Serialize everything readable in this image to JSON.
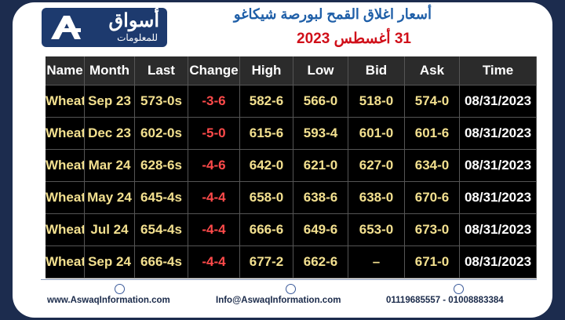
{
  "logo": {
    "name": "أسواق",
    "tagline": "للمعلومات"
  },
  "header": {
    "title": "أسعار اغلاق القمح لبورصة شيكاغو",
    "date": "31 أغسطس 2023"
  },
  "table": {
    "columns": [
      "Name",
      "Month",
      "Last",
      "Change",
      "High",
      "Low",
      "Bid",
      "Ask",
      "Time"
    ],
    "rows": [
      [
        "Wheat",
        "Sep 23",
        "573-0s",
        "-3-6",
        "582-6",
        "566-0",
        "518-0",
        "574-0",
        "08/31/2023"
      ],
      [
        "Wheat",
        "Dec 23",
        "602-0s",
        "-5-0",
        "615-6",
        "593-4",
        "601-0",
        "601-6",
        "08/31/2023"
      ],
      [
        "Wheat",
        "Mar 24",
        "628-6s",
        "-4-6",
        "642-0",
        "621-0",
        "627-0",
        "634-0",
        "08/31/2023"
      ],
      [
        "Wheat",
        "May 24",
        "645-4s",
        "-4-4",
        "658-0",
        "638-6",
        "638-0",
        "670-6",
        "08/31/2023"
      ],
      [
        "Wheat",
        "Jul 24",
        "654-4s",
        "-4-4",
        "666-6",
        "649-6",
        "653-0",
        "673-0",
        "08/31/2023"
      ],
      [
        "Wheat",
        "Sep 24",
        "666-4s",
        "-4-4",
        "677-2",
        "662-6",
        "–",
        "671-0",
        "08/31/2023"
      ]
    ]
  },
  "footer": {
    "website": "www.AswaqInformation.com",
    "email": "Info@AswaqInformation.com",
    "phone": "01119685557 - 01008883384"
  }
}
